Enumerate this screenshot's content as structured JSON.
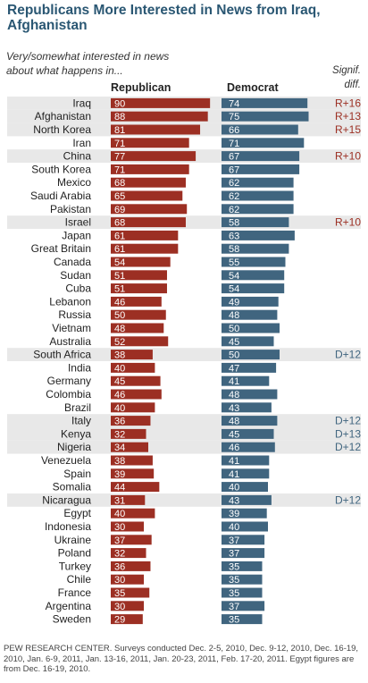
{
  "title": "Republicans More Interested in News from Iraq, Afghanistan",
  "subtitle": "Very/somewhat interested in news about what happens in...",
  "note": "PEW RESEARCH CENTER. Surveys conducted Dec. 2-5, 2010, Dec. 9-12, 2010, Dec. 16-19, 2010, Jan. 6-9, 2011, Jan. 13-16, 2011, Jan. 20-23, 2011, Feb. 17-20, 2011. Egypt figures are from Dec. 16-19, 2010.",
  "colors": {
    "republican": "#9c2f23",
    "democrat": "#40657f",
    "highlight": "#e8e8e8",
    "title": "#2a5773"
  },
  "chart_data": {
    "type": "bar",
    "categories": [
      "Iraq",
      "Afghanistan",
      "North Korea",
      "Iran",
      "China",
      "South Korea",
      "Mexico",
      "Saudi Arabia",
      "Pakistan",
      "Israel",
      "Japan",
      "Great Britain",
      "Canada",
      "Sudan",
      "Cuba",
      "Lebanon",
      "Russia",
      "Vietnam",
      "Australia",
      "South Africa",
      "India",
      "Germany",
      "Colombia",
      "Brazil",
      "Italy",
      "Kenya",
      "Nigeria",
      "Venezuela",
      "Spain",
      "Somalia",
      "Nicaragua",
      "Egypt",
      "Indonesia",
      "Ukraine",
      "Poland",
      "Turkey",
      "Chile",
      "France",
      "Argentina",
      "Sweden"
    ],
    "series": [
      {
        "name": "Republican",
        "values": [
          90,
          88,
          81,
          71,
          77,
          71,
          68,
          65,
          69,
          68,
          61,
          61,
          54,
          51,
          51,
          46,
          50,
          48,
          52,
          38,
          40,
          45,
          46,
          40,
          36,
          32,
          34,
          38,
          39,
          44,
          31,
          40,
          30,
          37,
          32,
          36,
          30,
          35,
          30,
          29
        ]
      },
      {
        "name": "Democrat",
        "values": [
          74,
          75,
          66,
          71,
          67,
          67,
          62,
          62,
          62,
          58,
          63,
          58,
          55,
          54,
          54,
          49,
          48,
          50,
          45,
          50,
          47,
          41,
          48,
          43,
          48,
          45,
          46,
          41,
          41,
          40,
          43,
          39,
          40,
          37,
          37,
          35,
          35,
          35,
          37,
          35
        ]
      }
    ],
    "diff_header": "Signif. diff.",
    "significant_diff": [
      "R+16",
      "R+13",
      "R+15",
      "",
      "R+10",
      "",
      "",
      "",
      "",
      "R+10",
      "",
      "",
      "",
      "",
      "",
      "",
      "",
      "",
      "",
      "D+12",
      "",
      "",
      "",
      "",
      "D+12",
      "D+13",
      "D+12",
      "",
      "",
      "",
      "D+12",
      "",
      "",
      "",
      "",
      "",
      "",
      "",
      "",
      ""
    ],
    "ylim": [
      0,
      100
    ]
  }
}
